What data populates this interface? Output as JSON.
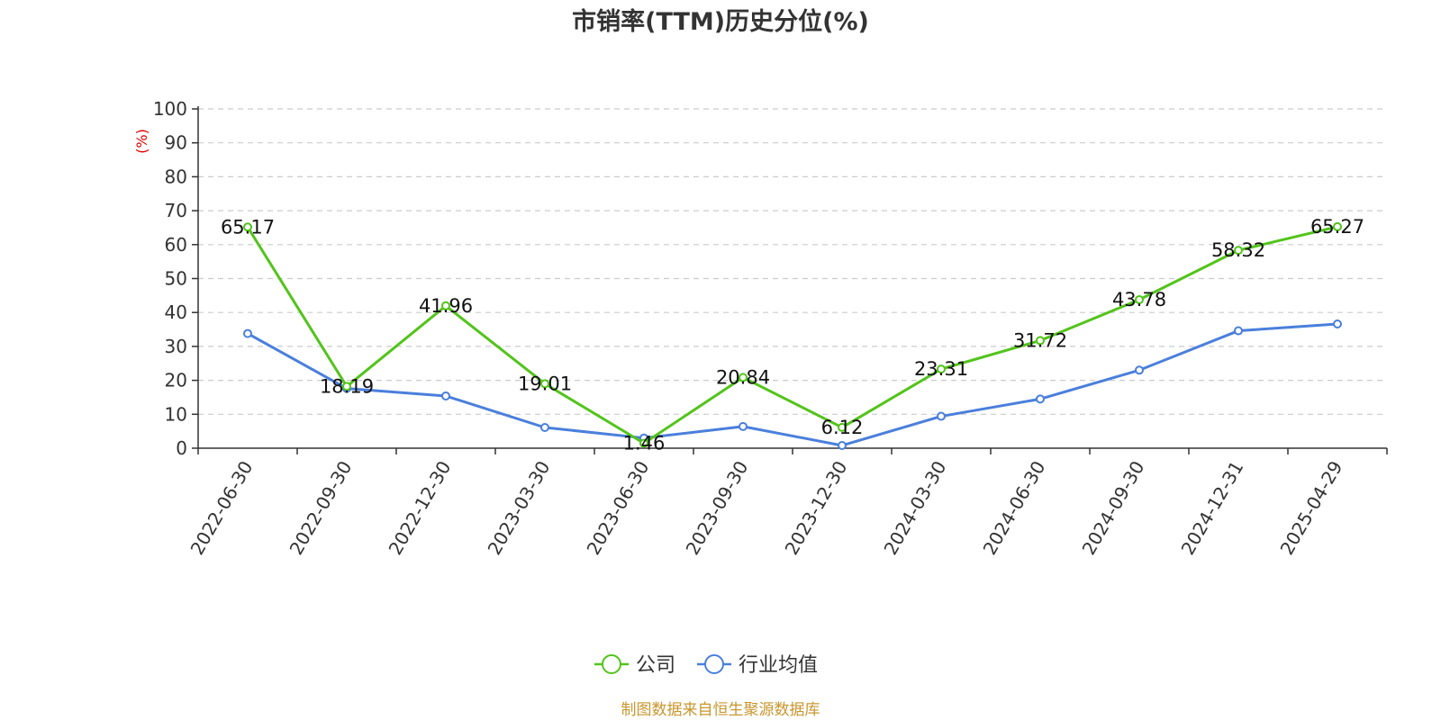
{
  "chart_data": {
    "type": "line",
    "title": "市销率(TTM)历史分位(%)",
    "ylabel": "(%)",
    "xlabel": "",
    "ylim": [
      0,
      100
    ],
    "yticks": [
      0,
      10,
      20,
      30,
      40,
      50,
      60,
      70,
      80,
      90,
      100
    ],
    "grid": "horizontal-dashed",
    "legend_position": "bottom-center",
    "categories": [
      "2022-06-30",
      "2022-09-30",
      "2022-12-30",
      "2023-03-30",
      "2023-06-30",
      "2023-09-30",
      "2023-12-30",
      "2024-03-30",
      "2024-06-30",
      "2024-09-30",
      "2024-12-31",
      "2025-04-29"
    ],
    "series": [
      {
        "name": "公司",
        "color": "#52c41a",
        "values": [
          65.17,
          18.19,
          41.96,
          19.01,
          1.46,
          20.84,
          6.12,
          23.31,
          31.72,
          43.78,
          58.32,
          65.27
        ],
        "show_labels": true
      },
      {
        "name": "行业均值",
        "color": "#4a7fdc",
        "values": [
          33.8,
          17.6,
          15.4,
          6.1,
          3.0,
          6.4,
          0.8,
          9.4,
          14.5,
          23.0,
          34.6,
          36.6
        ],
        "show_labels": false
      }
    ]
  },
  "source": {
    "text": "制图数据来自恒生聚源数据库",
    "color": "#c8962e"
  }
}
